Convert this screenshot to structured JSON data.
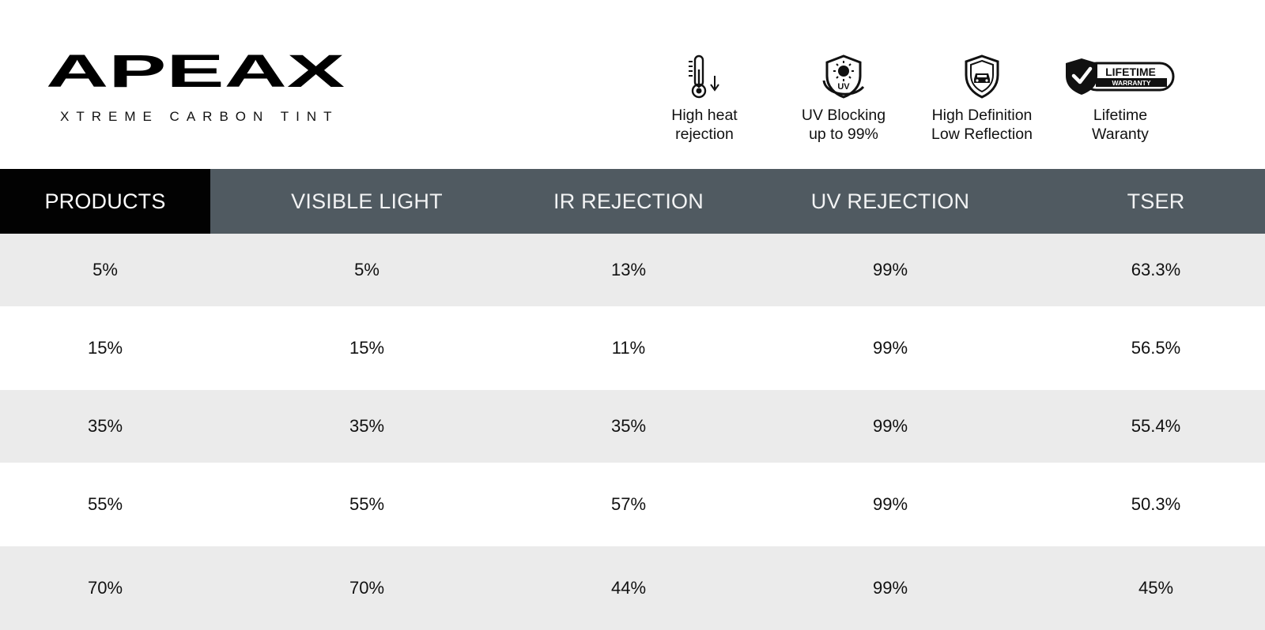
{
  "brand": {
    "name": "APEAX",
    "tagline": "XTREME CARBON TINT"
  },
  "features": [
    {
      "icon": "thermometer-icon",
      "caption": "High heat\nrejection"
    },
    {
      "icon": "uv-shield-icon",
      "caption": "UV Blocking\nup to 99%"
    },
    {
      "icon": "car-shield-icon",
      "caption": "High Definition\nLow Reflection"
    },
    {
      "icon": "lifetime-warranty-badge-icon",
      "caption": "Lifetime\nWaranty",
      "badge_text": "LIFETIME",
      "badge_sub": "WARRANTY"
    }
  ],
  "colors": {
    "header_bar": "#505a61",
    "products_header": "#020202",
    "row_shade": "#ebebeb"
  },
  "table": {
    "headers": [
      "PRODUCTS",
      "VISIBLE LIGHT",
      "IR REJECTION",
      "UV REJECTION",
      "TSER"
    ],
    "rows": [
      [
        "5%",
        "5%",
        "13%",
        "99%",
        "63.3%"
      ],
      [
        "15%",
        "15%",
        "11%",
        "99%",
        "56.5%"
      ],
      [
        "35%",
        "35%",
        "35%",
        "99%",
        "55.4%"
      ],
      [
        "55%",
        "55%",
        "57%",
        "99%",
        "50.3%"
      ],
      [
        "70%",
        "70%",
        "44%",
        "99%",
        "45%"
      ]
    ]
  }
}
